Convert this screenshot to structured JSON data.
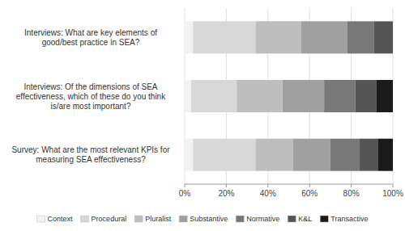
{
  "chart_data": {
    "type": "bar",
    "orientation": "horizontal",
    "stacked": true,
    "grid": true,
    "legend": "bottom",
    "categories": [
      "Survey: What are the most relevant KPIs for\nmeasuring SEA effectiveness?",
      "Interviews: Of the dimensions of SEA\neffectiveness, which of these do you think\nis/are most important?",
      "Interviews: What are key elements of\ngood/best practice in SEA?"
    ],
    "series": [
      {
        "name": "Context",
        "color": "#f2f2f2",
        "values": [
          0.04,
          0.03,
          0.04
        ]
      },
      {
        "name": "Procedural",
        "color": "#d8d8d8",
        "values": [
          0.3,
          0.22,
          0.3
        ]
      },
      {
        "name": "Pluralist",
        "color": "#bebebe",
        "values": [
          0.18,
          0.22,
          0.22
        ]
      },
      {
        "name": "Substantive",
        "color": "#a0a0a0",
        "values": [
          0.18,
          0.2,
          0.22
        ]
      },
      {
        "name": "Normative",
        "color": "#787878",
        "values": [
          0.14,
          0.15,
          0.13
        ]
      },
      {
        "name": "K&L",
        "color": "#555555",
        "values": [
          0.09,
          0.1,
          0.09
        ]
      },
      {
        "name": "Transactive",
        "color": "#1a1a1a",
        "values": [
          0.07,
          0.08,
          0.0
        ]
      }
    ],
    "xlim": [
      0,
      1.0
    ],
    "xticks": [
      {
        "value": 0,
        "label": "0%"
      },
      {
        "value": 0.2,
        "label": "20%"
      },
      {
        "value": 0.4,
        "label": "40%"
      },
      {
        "value": 0.6,
        "label": "60%"
      },
      {
        "value": 0.8,
        "label": "80%"
      },
      {
        "value": 1.0,
        "label": "100%"
      }
    ]
  }
}
